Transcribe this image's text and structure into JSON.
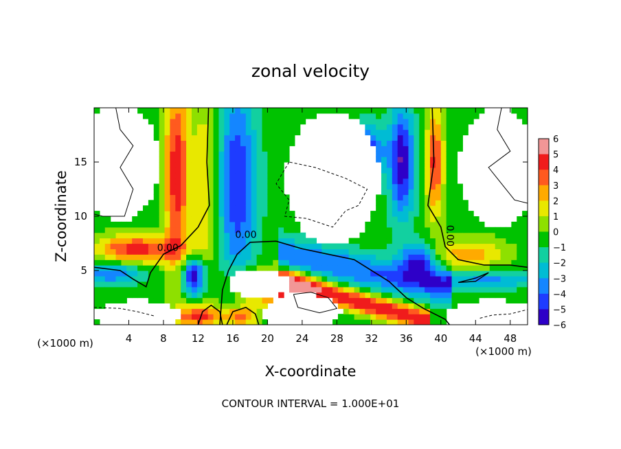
{
  "chart_data": {
    "type": "heatmap",
    "title": "zonal velocity",
    "xlabel": "X-coordinate",
    "ylabel": "Z-coordinate",
    "x_units_left": "(×1000 m)",
    "x_units_right": "(×1000 m)",
    "footer": "CONTOUR INTERVAL = 1.000E+01",
    "xlim": [
      0,
      50
    ],
    "ylim": [
      0,
      20
    ],
    "x_ticks": [
      4,
      8,
      12,
      16,
      20,
      24,
      28,
      32,
      36,
      40,
      44,
      48
    ],
    "x_tick_labels": [
      "4",
      "8",
      "12",
      "16",
      "20",
      "24",
      "28",
      "32",
      "36",
      "40",
      "44",
      "48"
    ],
    "y_ticks": [
      5,
      10,
      15
    ],
    "y_tick_labels": [
      "5",
      "10",
      "15"
    ],
    "colorbar": {
      "min": -6,
      "max": 6,
      "ticks": [
        6,
        5,
        4,
        3,
        2,
        1,
        0,
        -1,
        -2,
        -3,
        -4,
        -5,
        -6
      ],
      "tick_labels": [
        "6",
        "5",
        "4",
        "3",
        "2",
        "1",
        "0",
        "−1",
        "−2",
        "−3",
        "−4",
        "−5",
        "−6"
      ]
    },
    "contour_labels": [
      {
        "text": "0.00",
        "x": 8.5,
        "y": 6.8
      },
      {
        "text": "0.00",
        "x": 17.5,
        "y": 8.0
      },
      {
        "text": "0.00",
        "x": 40.7,
        "y": 8.2
      }
    ],
    "white_regions_description_free": true
  }
}
